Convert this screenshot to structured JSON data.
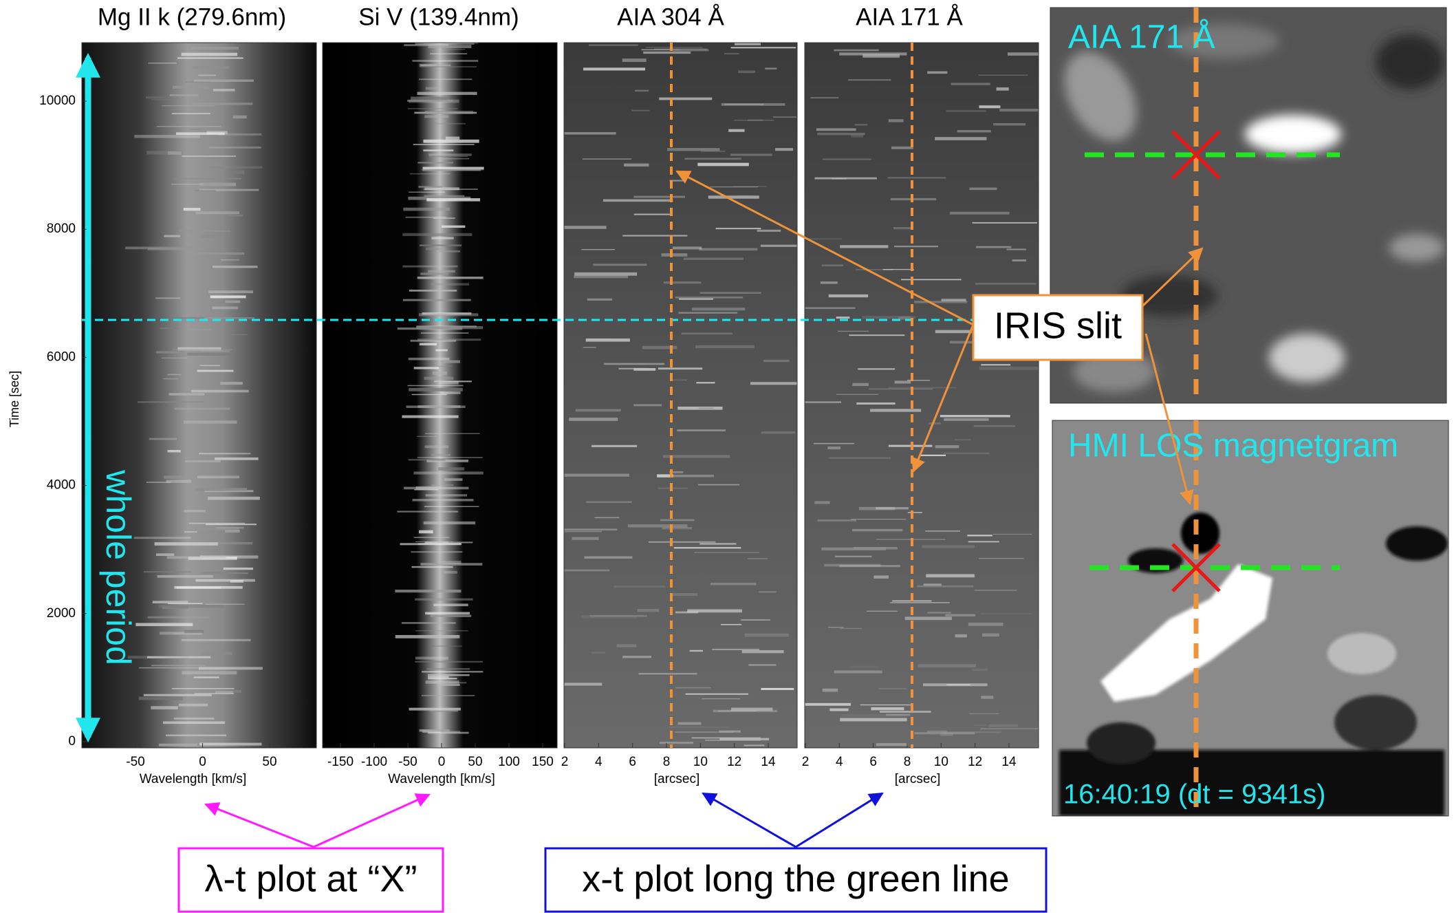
{
  "y_axis": {
    "label": "Time [sec]",
    "ticks": [
      "0",
      "2000",
      "4000",
      "6000",
      "8000",
      "10000"
    ]
  },
  "panels": [
    {
      "title": "Mg II k (279.6nm)",
      "xticks": [
        "-50",
        "0",
        "50"
      ],
      "xlabel": "Wavelength [km/s]"
    },
    {
      "title": "Si V (139.4nm)",
      "xticks": [
        "-150",
        "-100",
        "-50",
        "0",
        "50",
        "100",
        "150"
      ],
      "xlabel": "Wavelength [km/s]"
    },
    {
      "title": "AIA 304 Å",
      "xticks": [
        "2",
        "4",
        "6",
        "8",
        "10",
        "12",
        "14"
      ],
      "xlabel": "[arcsec]"
    },
    {
      "title": "AIA 171 Å",
      "xticks": [
        "2",
        "4",
        "6",
        "8",
        "10",
        "12",
        "14"
      ],
      "xlabel": "[arcsec]"
    }
  ],
  "images": [
    {
      "title": "AIA 171 Å"
    },
    {
      "title": "HMI LOS magnetgram",
      "timestamp": "16:40:19 (dt =  9341s)"
    }
  ],
  "annotations": {
    "whole_period": "whole period",
    "iris_slit": "IRIS slit",
    "lambda_t": "λ-t plot at “X”",
    "x_t": "x-t plot long the green line"
  }
}
